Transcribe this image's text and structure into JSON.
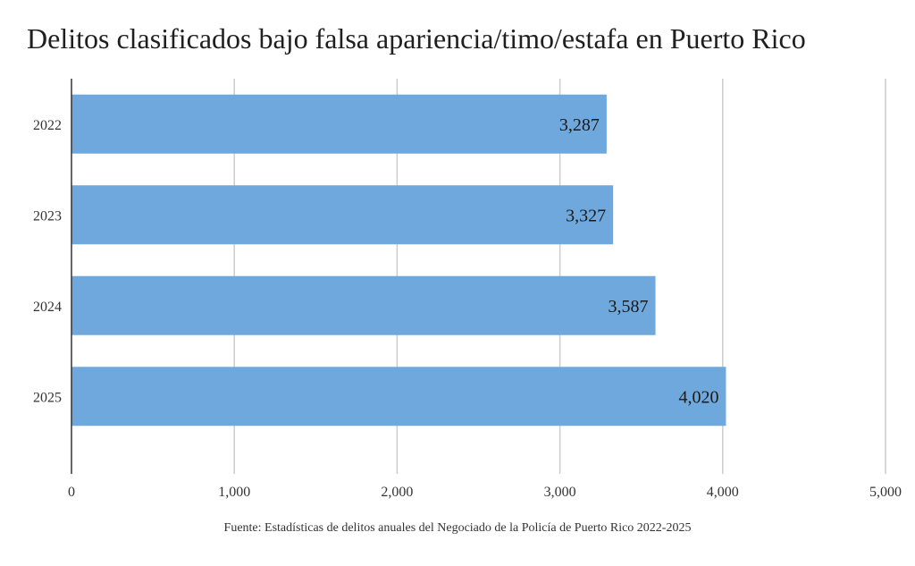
{
  "chart_data": {
    "type": "bar",
    "orientation": "horizontal",
    "title": "Delitos clasificados bajo falsa apariencia/timo/estafa en Puerto Rico",
    "categories": [
      "2022",
      "2023",
      "2024",
      "2025"
    ],
    "values": [
      3287,
      3327,
      3587,
      4020
    ],
    "value_labels": [
      "3,287",
      "3,327",
      "3,587",
      "4,020"
    ],
    "xlim": [
      0,
      5000
    ],
    "x_ticks": [
      0,
      1000,
      2000,
      3000,
      4000,
      5000
    ],
    "x_tick_labels": [
      "0",
      "1,000",
      "2,000",
      "3,000",
      "4,000",
      "5,000"
    ],
    "xlabel": "",
    "ylabel": "",
    "grid": "vertical",
    "legend": "none",
    "bar_color": "#6fa8dc",
    "grid_color": "#cccccc",
    "axis_color": "#333333",
    "source": "Fuente: Estadísticas de delitos anuales del Negociado de la Policía de Puerto Rico 2022-2025"
  }
}
